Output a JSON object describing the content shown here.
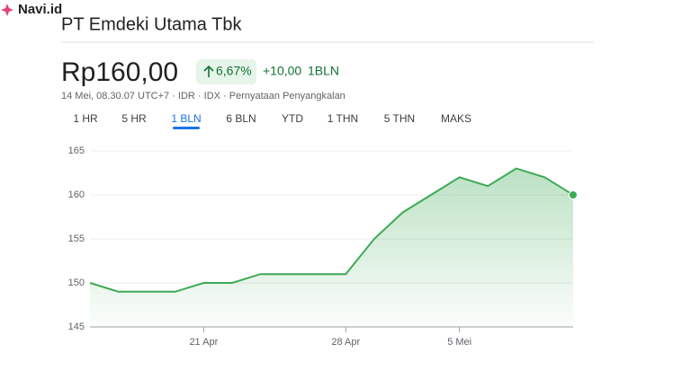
{
  "watermark": "Navi.id",
  "header": {
    "title": "PT Emdeki Utama Tbk",
    "price": "Rp160,00",
    "change_percent": "6,67%",
    "change": "+10,00",
    "period": "1BLN",
    "meta": "14 Mei, 08.30.07 UTC+7 · IDR · IDX · Pernyataan Penyangkalan"
  },
  "tabs": [
    "1 HR",
    "5 HR",
    "1 BLN",
    "6 BLN",
    "YTD",
    "1 THN",
    "5 THN",
    "MAKS"
  ],
  "active_tab": 2,
  "chart_data": {
    "type": "line",
    "categories": [
      null,
      null,
      null,
      null,
      "21 Apr",
      null,
      null,
      null,
      null,
      "28 Apr",
      null,
      null,
      null,
      "5 Mei",
      null,
      null,
      null,
      null
    ],
    "values": [
      150,
      149,
      149,
      149,
      150,
      150,
      151,
      151,
      151,
      151,
      155,
      158,
      160,
      162,
      161,
      163,
      162,
      160
    ],
    "color": "#3eaa55",
    "ylim": [
      145,
      165
    ],
    "yticks": [
      145,
      150,
      155,
      160,
      165
    ],
    "grid": true
  }
}
